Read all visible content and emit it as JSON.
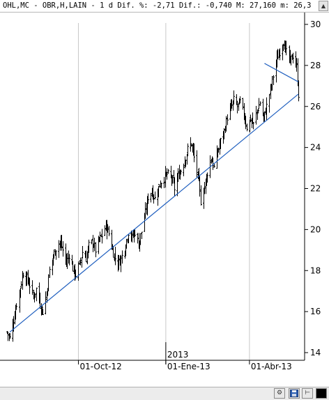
{
  "header": {
    "title": "OHL,MC - OBR,H,LAIN -  1 d Dif. %: -2,71 Dif.: -0,740 M: 27,160 m: 26,3"
  },
  "colors": {
    "bars": "#000000",
    "trendlines": "#1f5fbf",
    "grid": "#c8c8c8",
    "background": "#ffffff"
  },
  "icons": {
    "scroll_up": "triangle-up-icon",
    "draw_tool": "wrench-icon",
    "save": "floppy-disk-icon",
    "pin": "pin-icon",
    "color_box": "black-square-icon"
  },
  "chart_data": {
    "type": "ohlc",
    "title": "",
    "xlabel": "",
    "ylabel": "",
    "ylim": [
      14,
      30
    ],
    "y_ticks": [
      "30",
      "28",
      "26",
      "24",
      "22",
      "20",
      "18",
      "16",
      "14"
    ],
    "x_ticks": [
      "01-Oct-12",
      "01-Ene-13",
      "01-Abr-13"
    ],
    "year_marker": "2013",
    "grid": true,
    "grid_axis": "vertical",
    "y_axis_position": "right",
    "start": "2012-07-17",
    "end": "2013-05-23",
    "close_path": [
      [
        "2012-07-17",
        15.0
      ],
      [
        "2012-07-20",
        14.7
      ],
      [
        "2012-07-24",
        15.6
      ],
      [
        "2012-07-27",
        16.4
      ],
      [
        "2012-07-31",
        17.2
      ],
      [
        "2012-08-03",
        17.9
      ],
      [
        "2012-08-07",
        17.6
      ],
      [
        "2012-08-10",
        17.3
      ],
      [
        "2012-08-14",
        16.7
      ],
      [
        "2012-08-17",
        17.1
      ],
      [
        "2012-08-21",
        16.4
      ],
      [
        "2012-08-24",
        16.0
      ],
      [
        "2012-08-28",
        16.9
      ],
      [
        "2012-08-31",
        18.0
      ],
      [
        "2012-09-04",
        18.7
      ],
      [
        "2012-09-07",
        19.1
      ],
      [
        "2012-09-11",
        19.4
      ],
      [
        "2012-09-14",
        19.0
      ],
      [
        "2012-09-18",
        18.4
      ],
      [
        "2012-09-21",
        18.8
      ],
      [
        "2012-09-25",
        18.1
      ],
      [
        "2012-09-28",
        17.8
      ],
      [
        "2012-10-02",
        18.3
      ],
      [
        "2012-10-05",
        18.9
      ],
      [
        "2012-10-09",
        18.6
      ],
      [
        "2012-10-12",
        19.2
      ],
      [
        "2012-10-16",
        19.4
      ],
      [
        "2012-10-19",
        19.0
      ],
      [
        "2012-10-23",
        19.5
      ],
      [
        "2012-10-26",
        19.7
      ],
      [
        "2012-10-30",
        20.2
      ],
      [
        "2012-11-02",
        19.8
      ],
      [
        "2012-11-06",
        19.0
      ],
      [
        "2012-11-09",
        18.6
      ],
      [
        "2012-11-13",
        18.4
      ],
      [
        "2012-11-16",
        18.7
      ],
      [
        "2012-11-20",
        19.3
      ],
      [
        "2012-11-23",
        19.9
      ],
      [
        "2012-11-27",
        19.6
      ],
      [
        "2012-11-30",
        19.9
      ],
      [
        "2012-12-04",
        19.3
      ],
      [
        "2012-12-07",
        19.9
      ],
      [
        "2012-12-11",
        20.8
      ],
      [
        "2012-12-14",
        21.6
      ],
      [
        "2012-12-18",
        21.9
      ],
      [
        "2012-12-21",
        21.5
      ],
      [
        "2012-12-27",
        22.3
      ],
      [
        "2013-01-03",
        22.7
      ],
      [
        "2013-01-08",
        22.5
      ],
      [
        "2013-01-11",
        22.0
      ],
      [
        "2013-01-15",
        22.6
      ],
      [
        "2013-01-18",
        22.9
      ],
      [
        "2013-01-22",
        23.4
      ],
      [
        "2013-01-25",
        23.9
      ],
      [
        "2013-01-29",
        24.2
      ],
      [
        "2013-02-01",
        23.5
      ],
      [
        "2013-02-05",
        22.6
      ],
      [
        "2013-02-08",
        21.4
      ],
      [
        "2013-02-12",
        22.1
      ],
      [
        "2013-02-15",
        22.8
      ],
      [
        "2013-02-19",
        23.5
      ],
      [
        "2013-02-22",
        23.0
      ],
      [
        "2013-02-26",
        23.8
      ],
      [
        "2013-03-01",
        24.3
      ],
      [
        "2013-03-05",
        24.8
      ],
      [
        "2013-03-08",
        25.5
      ],
      [
        "2013-03-12",
        25.9
      ],
      [
        "2013-03-15",
        26.3
      ],
      [
        "2013-03-19",
        26.0
      ],
      [
        "2013-03-22",
        26.2
      ],
      [
        "2013-03-26",
        25.6
      ],
      [
        "2013-03-29",
        25.0
      ],
      [
        "2013-04-02",
        25.4
      ],
      [
        "2013-04-05",
        25.1
      ],
      [
        "2013-04-09",
        25.8
      ],
      [
        "2013-04-12",
        26.2
      ],
      [
        "2013-04-16",
        25.4
      ],
      [
        "2013-04-19",
        26.0
      ],
      [
        "2013-04-23",
        26.8
      ],
      [
        "2013-04-26",
        27.5
      ],
      [
        "2013-04-30",
        28.3
      ],
      [
        "2013-05-03",
        28.7
      ],
      [
        "2013-05-07",
        29.2
      ],
      [
        "2013-05-10",
        28.6
      ],
      [
        "2013-05-14",
        28.2
      ],
      [
        "2013-05-17",
        28.5
      ],
      [
        "2013-05-21",
        27.9
      ],
      [
        "2013-05-23",
        26.6
      ]
    ],
    "trendlines": [
      {
        "from": [
          "2012-07-20",
          15.0
        ],
        "to": [
          "2013-05-23",
          26.6
        ]
      },
      {
        "from": [
          "2013-04-17",
          28.1
        ],
        "to": [
          "2013-05-23",
          27.2
        ]
      }
    ]
  }
}
